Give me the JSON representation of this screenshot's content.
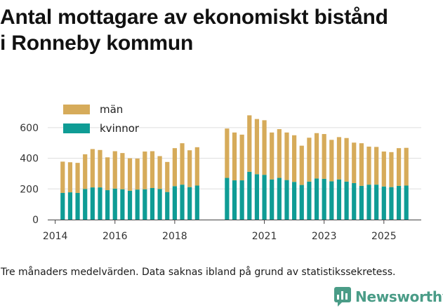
{
  "title_line1": "Antal mottagare av ekonomiskt bistånd",
  "title_line2": "i Ronneby kommun",
  "caption": "Tre månaders medelvärden. Data saknas ibland på grund av statistikssekretess.",
  "brand": {
    "name": "Newsworthy",
    "icon": "newsworthy-logo-icon",
    "color": "#4a9c87"
  },
  "chart_data": {
    "type": "bar",
    "stacked": true,
    "title": "Antal mottagare av ekonomiskt bistånd i Ronneby kommun",
    "xlabel": "",
    "ylabel": "",
    "ylim": [
      0,
      700
    ],
    "yticks": [
      0,
      200,
      400,
      600
    ],
    "xlim": [
      2013.75,
      2026.25
    ],
    "xticks": [
      2014,
      2016,
      2018,
      2021,
      2023,
      2025
    ],
    "grid": true,
    "legend_position": "top-left",
    "colors": {
      "män": "#d6ab5a",
      "kvinnor": "#0f9c95"
    },
    "x": [
      2014.25,
      2014.5,
      2014.75,
      2015.0,
      2015.25,
      2015.5,
      2015.75,
      2016.0,
      2016.25,
      2016.5,
      2016.75,
      2017.0,
      2017.25,
      2017.5,
      2017.75,
      2018.0,
      2018.25,
      2018.5,
      2018.75,
      2019.75,
      2020.0,
      2020.25,
      2020.5,
      2020.75,
      2021.0,
      2021.25,
      2021.5,
      2021.75,
      2022.0,
      2022.25,
      2022.5,
      2022.75,
      2023.0,
      2023.25,
      2023.5,
      2023.75,
      2024.0,
      2024.25,
      2024.5,
      2024.75,
      2025.0,
      2025.25,
      2025.5,
      2025.75
    ],
    "series": [
      {
        "name": "kvinnor",
        "values": [
          174,
          178,
          174,
          200,
          210,
          210,
          192,
          202,
          198,
          188,
          196,
          198,
          206,
          200,
          180,
          218,
          228,
          212,
          222,
          272,
          256,
          256,
          312,
          296,
          292,
          262,
          272,
          258,
          246,
          226,
          248,
          268,
          266,
          250,
          262,
          248,
          238,
          220,
          228,
          228,
          216,
          212,
          220,
          222
        ]
      },
      {
        "name": "män",
        "values": [
          204,
          196,
          196,
          226,
          250,
          244,
          214,
          244,
          236,
          212,
          202,
          246,
          240,
          214,
          196,
          248,
          270,
          240,
          250,
          322,
          312,
          298,
          368,
          360,
          356,
          306,
          318,
          310,
          304,
          256,
          286,
          296,
          292,
          270,
          276,
          284,
          264,
          278,
          248,
          246,
          228,
          228,
          246,
          246
        ]
      }
    ]
  }
}
